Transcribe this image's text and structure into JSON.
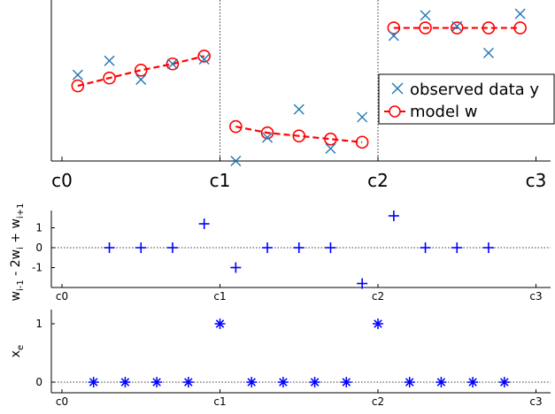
{
  "chart_data": [
    {
      "type": "scatter",
      "x_ticks": [
        "c0",
        "c1",
        "c2",
        "c3"
      ],
      "xlim": [
        -0.1,
        3.05
      ],
      "ylim": [
        0.05,
        1.05
      ],
      "vlines": [
        1,
        2
      ],
      "legend": {
        "placement": "right-middle",
        "entries": [
          {
            "label": "observed data y",
            "series": "observed"
          },
          {
            "label": "model w",
            "series": "model"
          }
        ]
      },
      "series": [
        {
          "id": "observed",
          "marker": "x",
          "color": "#1f77b4",
          "x": [
            0.1,
            0.3,
            0.5,
            0.7,
            0.9,
            1.1,
            1.3,
            1.5,
            1.7,
            1.9,
            2.1,
            2.3,
            2.5,
            2.7,
            2.9
          ],
          "y": [
            0.6,
            0.69,
            0.57,
            0.67,
            0.7,
            0.05,
            0.2,
            0.38,
            0.13,
            0.33,
            0.85,
            0.98,
            0.91,
            0.74,
            0.99
          ]
        },
        {
          "id": "model",
          "marker": "circle",
          "line": "dashed",
          "color": "#ff0000",
          "x": [
            0.1,
            0.3,
            0.5,
            0.7,
            0.9,
            1.1,
            1.3,
            1.5,
            1.7,
            1.9,
            2.1,
            2.3,
            2.5,
            2.7,
            2.9
          ],
          "y": [
            0.53,
            0.58,
            0.63,
            0.67,
            0.72,
            0.27,
            0.23,
            0.21,
            0.19,
            0.17,
            0.9,
            0.9,
            0.9,
            0.9,
            0.9
          ]
        }
      ]
    },
    {
      "type": "scatter",
      "ylabel": "w_{i-1} - 2w_i + w_{i+1}",
      "x_ticks": [
        "c0",
        "c1",
        "c2",
        "c3"
      ],
      "xlim": [
        -0.1,
        3.05
      ],
      "ylim": [
        -2,
        2
      ],
      "y_ticks": [
        1,
        0,
        -1
      ],
      "zero_line": true,
      "series": [
        {
          "marker": "+",
          "color": "#0000ff",
          "x": [
            0.3,
            0.5,
            0.7,
            0.9,
            1.1,
            1.3,
            1.5,
            1.7,
            1.9,
            2.1,
            2.3,
            2.5,
            2.7
          ],
          "y": [
            0,
            0,
            0,
            1.2,
            -1,
            0,
            0,
            0,
            -1.8,
            1.6,
            0,
            0,
            0
          ]
        }
      ]
    },
    {
      "type": "scatter",
      "ylabel": "x_e",
      "x_ticks": [
        "c0",
        "c1",
        "c2",
        "c3"
      ],
      "xlim": [
        -0.1,
        3.05
      ],
      "ylim": [
        -0.1,
        1.1
      ],
      "y_ticks": [
        1,
        0
      ],
      "zero_line": true,
      "series": [
        {
          "marker": "*",
          "color": "#0000ff",
          "x": [
            0.2,
            0.4,
            0.6,
            0.8,
            1.0,
            1.2,
            1.4,
            1.6,
            1.8,
            2.0,
            2.2,
            2.4,
            2.6,
            2.8
          ],
          "y": [
            0,
            0,
            0,
            0,
            1,
            0,
            0,
            0,
            0,
            1,
            0,
            0,
            0,
            0
          ]
        }
      ]
    }
  ]
}
